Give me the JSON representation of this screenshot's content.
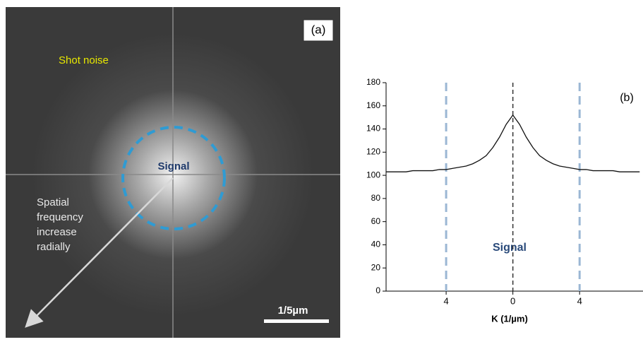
{
  "panel_a": {
    "label": "(a)",
    "noise_label": "Shot noise",
    "signal_label": "Signal",
    "arrow_label": [
      "Spatial",
      "frequency",
      "increase",
      "radially"
    ],
    "scale_bar": "1/5µm"
  },
  "chart_data": {
    "type": "line",
    "panel_label": "(b)",
    "annotation": "Signal",
    "x_label": "K (1/µm)",
    "x": [
      -7.6,
      -7.2,
      -6.8,
      -6.4,
      -6.0,
      -5.6,
      -5.2,
      -4.8,
      -4.4,
      -4.0,
      -3.6,
      -3.2,
      -2.8,
      -2.4,
      -2.0,
      -1.6,
      -1.2,
      -0.8,
      -0.4,
      0,
      0.4,
      0.8,
      1.2,
      1.6,
      2.0,
      2.4,
      2.8,
      3.2,
      3.6,
      4.0,
      4.4,
      4.8,
      5.2,
      5.6,
      6.0,
      6.4,
      6.8,
      7.2,
      7.6
    ],
    "values": [
      103,
      103,
      103,
      103,
      104,
      104,
      104,
      104,
      105,
      105,
      106,
      107,
      108,
      110,
      113,
      117,
      124,
      133,
      144,
      152,
      144,
      133,
      124,
      117,
      113,
      110,
      108,
      107,
      106,
      105,
      105,
      104,
      104,
      104,
      104,
      103,
      103,
      103,
      103
    ],
    "color": "#111111",
    "xlim": [
      -7.6,
      7.8
    ],
    "xticks": [
      {
        "value": -4,
        "label": "4"
      },
      0,
      {
        "value": 4,
        "label": "4"
      }
    ],
    "ylim": [
      0,
      180
    ],
    "yticks": [
      0,
      20,
      40,
      60,
      80,
      100,
      120,
      140,
      160,
      180
    ]
  }
}
